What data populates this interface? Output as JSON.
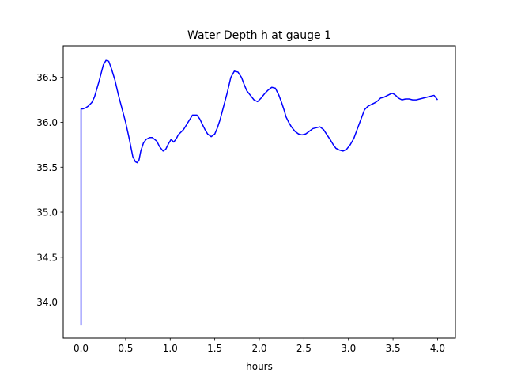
{
  "chart_data": {
    "type": "line",
    "title": "Water Depth h at gauge 1",
    "xlabel": "hours",
    "ylabel": "",
    "xlim": [
      -0.2,
      4.2
    ],
    "ylim": [
      33.6,
      36.85
    ],
    "xticks": [
      0.0,
      0.5,
      1.0,
      1.5,
      2.0,
      2.5,
      3.0,
      3.5,
      4.0
    ],
    "xtick_labels": [
      "0.0",
      "0.5",
      "1.0",
      "1.5",
      "2.0",
      "2.5",
      "3.0",
      "3.5",
      "4.0"
    ],
    "yticks": [
      34.0,
      34.5,
      35.0,
      35.5,
      36.0,
      36.5
    ],
    "ytick_labels": [
      "34.0",
      "34.5",
      "35.0",
      "35.5",
      "36.0",
      "36.5"
    ],
    "grid": false,
    "line_color": "#0000ff",
    "series": [
      {
        "x": [
          0.0,
          0.0,
          0.0,
          0.02,
          0.05,
          0.08,
          0.12,
          0.15,
          0.2,
          0.25,
          0.28,
          0.31,
          0.34,
          0.38,
          0.42,
          0.46,
          0.5,
          0.54,
          0.58,
          0.61,
          0.63,
          0.65,
          0.67,
          0.7,
          0.73,
          0.77,
          0.8,
          0.85,
          0.88,
          0.92,
          0.95,
          0.98,
          1.01,
          1.04,
          1.07,
          1.09,
          1.12,
          1.15,
          1.2,
          1.25,
          1.3,
          1.33,
          1.36,
          1.39,
          1.42,
          1.46,
          1.5,
          1.53,
          1.56,
          1.6,
          1.64,
          1.68,
          1.72,
          1.76,
          1.8,
          1.83,
          1.86,
          1.9,
          1.94,
          1.98,
          2.02,
          2.06,
          2.1,
          2.14,
          2.18,
          2.22,
          2.25,
          2.28,
          2.3,
          2.33,
          2.36,
          2.4,
          2.44,
          2.48,
          2.52,
          2.56,
          2.6,
          2.64,
          2.68,
          2.72,
          2.76,
          2.8,
          2.83,
          2.86,
          2.9,
          2.94,
          2.98,
          3.02,
          3.06,
          3.09,
          3.12,
          3.15,
          3.18,
          3.22,
          3.26,
          3.3,
          3.33,
          3.36,
          3.4,
          3.44,
          3.48,
          3.5,
          3.53,
          3.56,
          3.6,
          3.64,
          3.68,
          3.72,
          3.76,
          3.8,
          3.84,
          3.88,
          3.92,
          3.96,
          4.0
        ],
        "y": [
          33.74,
          35.5,
          36.15,
          36.15,
          36.16,
          36.18,
          36.22,
          36.28,
          36.45,
          36.64,
          36.69,
          36.68,
          36.6,
          36.47,
          36.3,
          36.15,
          36.0,
          35.82,
          35.62,
          35.56,
          35.55,
          35.58,
          35.68,
          35.77,
          35.81,
          35.83,
          35.83,
          35.79,
          35.73,
          35.68,
          35.7,
          35.76,
          35.81,
          35.78,
          35.82,
          35.86,
          35.89,
          35.92,
          36.0,
          36.08,
          36.08,
          36.04,
          35.98,
          35.92,
          35.87,
          35.84,
          35.87,
          35.94,
          36.03,
          36.18,
          36.33,
          36.5,
          36.57,
          36.56,
          36.5,
          36.42,
          36.35,
          36.3,
          36.25,
          36.23,
          36.27,
          36.32,
          36.36,
          36.39,
          36.38,
          36.3,
          36.22,
          36.13,
          36.06,
          36.0,
          35.95,
          35.9,
          35.87,
          35.86,
          35.87,
          35.9,
          35.93,
          35.94,
          35.95,
          35.92,
          35.86,
          35.8,
          35.75,
          35.71,
          35.69,
          35.68,
          35.7,
          35.75,
          35.82,
          35.9,
          35.98,
          36.06,
          36.14,
          36.18,
          36.2,
          36.22,
          36.24,
          36.27,
          36.28,
          36.3,
          36.32,
          36.32,
          36.3,
          36.27,
          36.25,
          36.26,
          36.26,
          36.25,
          36.25,
          36.26,
          36.27,
          36.28,
          36.29,
          36.3,
          36.25
        ]
      }
    ]
  }
}
